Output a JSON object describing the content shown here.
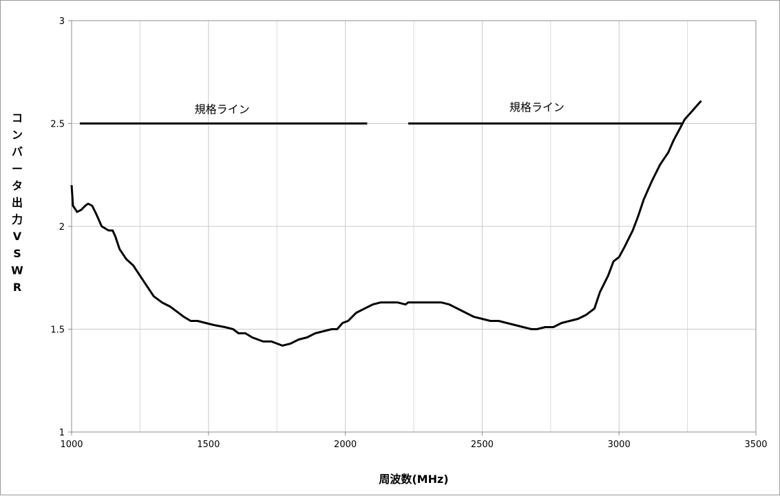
{
  "chart_data": {
    "type": "line",
    "xlabel": "周波数(MHz)",
    "ylabel": "コンバータ出力VSWR",
    "xlim": [
      1000,
      3500
    ],
    "ylim": [
      1,
      3
    ],
    "x_ticks": [
      1000,
      1500,
      2000,
      2500,
      3000,
      3500
    ],
    "y_ticks": [
      1,
      1.5,
      2,
      2.5,
      3
    ],
    "x_tick_labels": [
      "1000",
      "1500",
      "2000",
      "2500",
      "3000",
      "3500"
    ],
    "y_tick_labels": [
      "1",
      "1.5",
      "2",
      "2.5",
      "3"
    ],
    "x_minor_gridlines": [
      1250,
      1750,
      2250,
      2750,
      3250
    ],
    "grid": true,
    "legend": "none",
    "annotations": [
      {
        "text": "規格ライン",
        "x": 1550,
        "y": 2.55
      },
      {
        "text": "規格ライン",
        "x": 2700,
        "y": 2.56
      }
    ],
    "series": [
      {
        "values": [
          [
            1000,
            2.2
          ],
          [
            1005,
            2.1
          ],
          [
            1020,
            2.07
          ],
          [
            1035,
            2.08
          ],
          [
            1050,
            2.1
          ],
          [
            1060,
            2.11
          ],
          [
            1075,
            2.1
          ],
          [
            1090,
            2.06
          ],
          [
            1110,
            2.0
          ],
          [
            1135,
            1.98
          ],
          [
            1150,
            1.98
          ],
          [
            1160,
            1.95
          ],
          [
            1175,
            1.89
          ],
          [
            1200,
            1.84
          ],
          [
            1225,
            1.81
          ],
          [
            1250,
            1.76
          ],
          [
            1275,
            1.71
          ],
          [
            1300,
            1.66
          ],
          [
            1330,
            1.63
          ],
          [
            1360,
            1.61
          ],
          [
            1390,
            1.58
          ],
          [
            1410,
            1.56
          ],
          [
            1435,
            1.54
          ],
          [
            1460,
            1.54
          ],
          [
            1490,
            1.53
          ],
          [
            1520,
            1.52
          ],
          [
            1560,
            1.51
          ],
          [
            1590,
            1.5
          ],
          [
            1610,
            1.48
          ],
          [
            1635,
            1.48
          ],
          [
            1660,
            1.46
          ],
          [
            1700,
            1.44
          ],
          [
            1730,
            1.44
          ],
          [
            1770,
            1.42
          ],
          [
            1800,
            1.43
          ],
          [
            1830,
            1.45
          ],
          [
            1860,
            1.46
          ],
          [
            1890,
            1.48
          ],
          [
            1920,
            1.49
          ],
          [
            1950,
            1.5
          ],
          [
            1970,
            1.5
          ],
          [
            1990,
            1.53
          ],
          [
            2010,
            1.54
          ],
          [
            2040,
            1.58
          ],
          [
            2070,
            1.6
          ],
          [
            2100,
            1.62
          ],
          [
            2130,
            1.63
          ],
          [
            2160,
            1.63
          ],
          [
            2190,
            1.63
          ],
          [
            2220,
            1.62
          ],
          [
            2230,
            1.63
          ],
          [
            2260,
            1.63
          ],
          [
            2290,
            1.63
          ],
          [
            2320,
            1.63
          ],
          [
            2350,
            1.63
          ],
          [
            2380,
            1.62
          ],
          [
            2410,
            1.6
          ],
          [
            2440,
            1.58
          ],
          [
            2470,
            1.56
          ],
          [
            2500,
            1.55
          ],
          [
            2530,
            1.54
          ],
          [
            2560,
            1.54
          ],
          [
            2590,
            1.53
          ],
          [
            2620,
            1.52
          ],
          [
            2650,
            1.51
          ],
          [
            2680,
            1.5
          ],
          [
            2700,
            1.5
          ],
          [
            2730,
            1.51
          ],
          [
            2760,
            1.51
          ],
          [
            2790,
            1.53
          ],
          [
            2820,
            1.54
          ],
          [
            2850,
            1.55
          ],
          [
            2880,
            1.57
          ],
          [
            2910,
            1.6
          ],
          [
            2930,
            1.68
          ],
          [
            2960,
            1.76
          ],
          [
            2980,
            1.83
          ],
          [
            3000,
            1.85
          ],
          [
            3020,
            1.9
          ],
          [
            3050,
            1.98
          ],
          [
            3070,
            2.05
          ],
          [
            3090,
            2.13
          ],
          [
            3120,
            2.22
          ],
          [
            3150,
            2.3
          ],
          [
            3180,
            2.36
          ],
          [
            3200,
            2.42
          ],
          [
            3220,
            2.47
          ],
          [
            3240,
            2.52
          ],
          [
            3260,
            2.55
          ],
          [
            3280,
            2.58
          ],
          [
            3300,
            2.61
          ]
        ]
      },
      {
        "values": [
          [
            1030,
            2.5
          ],
          [
            2080,
            2.5
          ]
        ]
      },
      {
        "values": [
          [
            2230,
            2.5
          ],
          [
            3230,
            2.5
          ]
        ]
      }
    ]
  }
}
